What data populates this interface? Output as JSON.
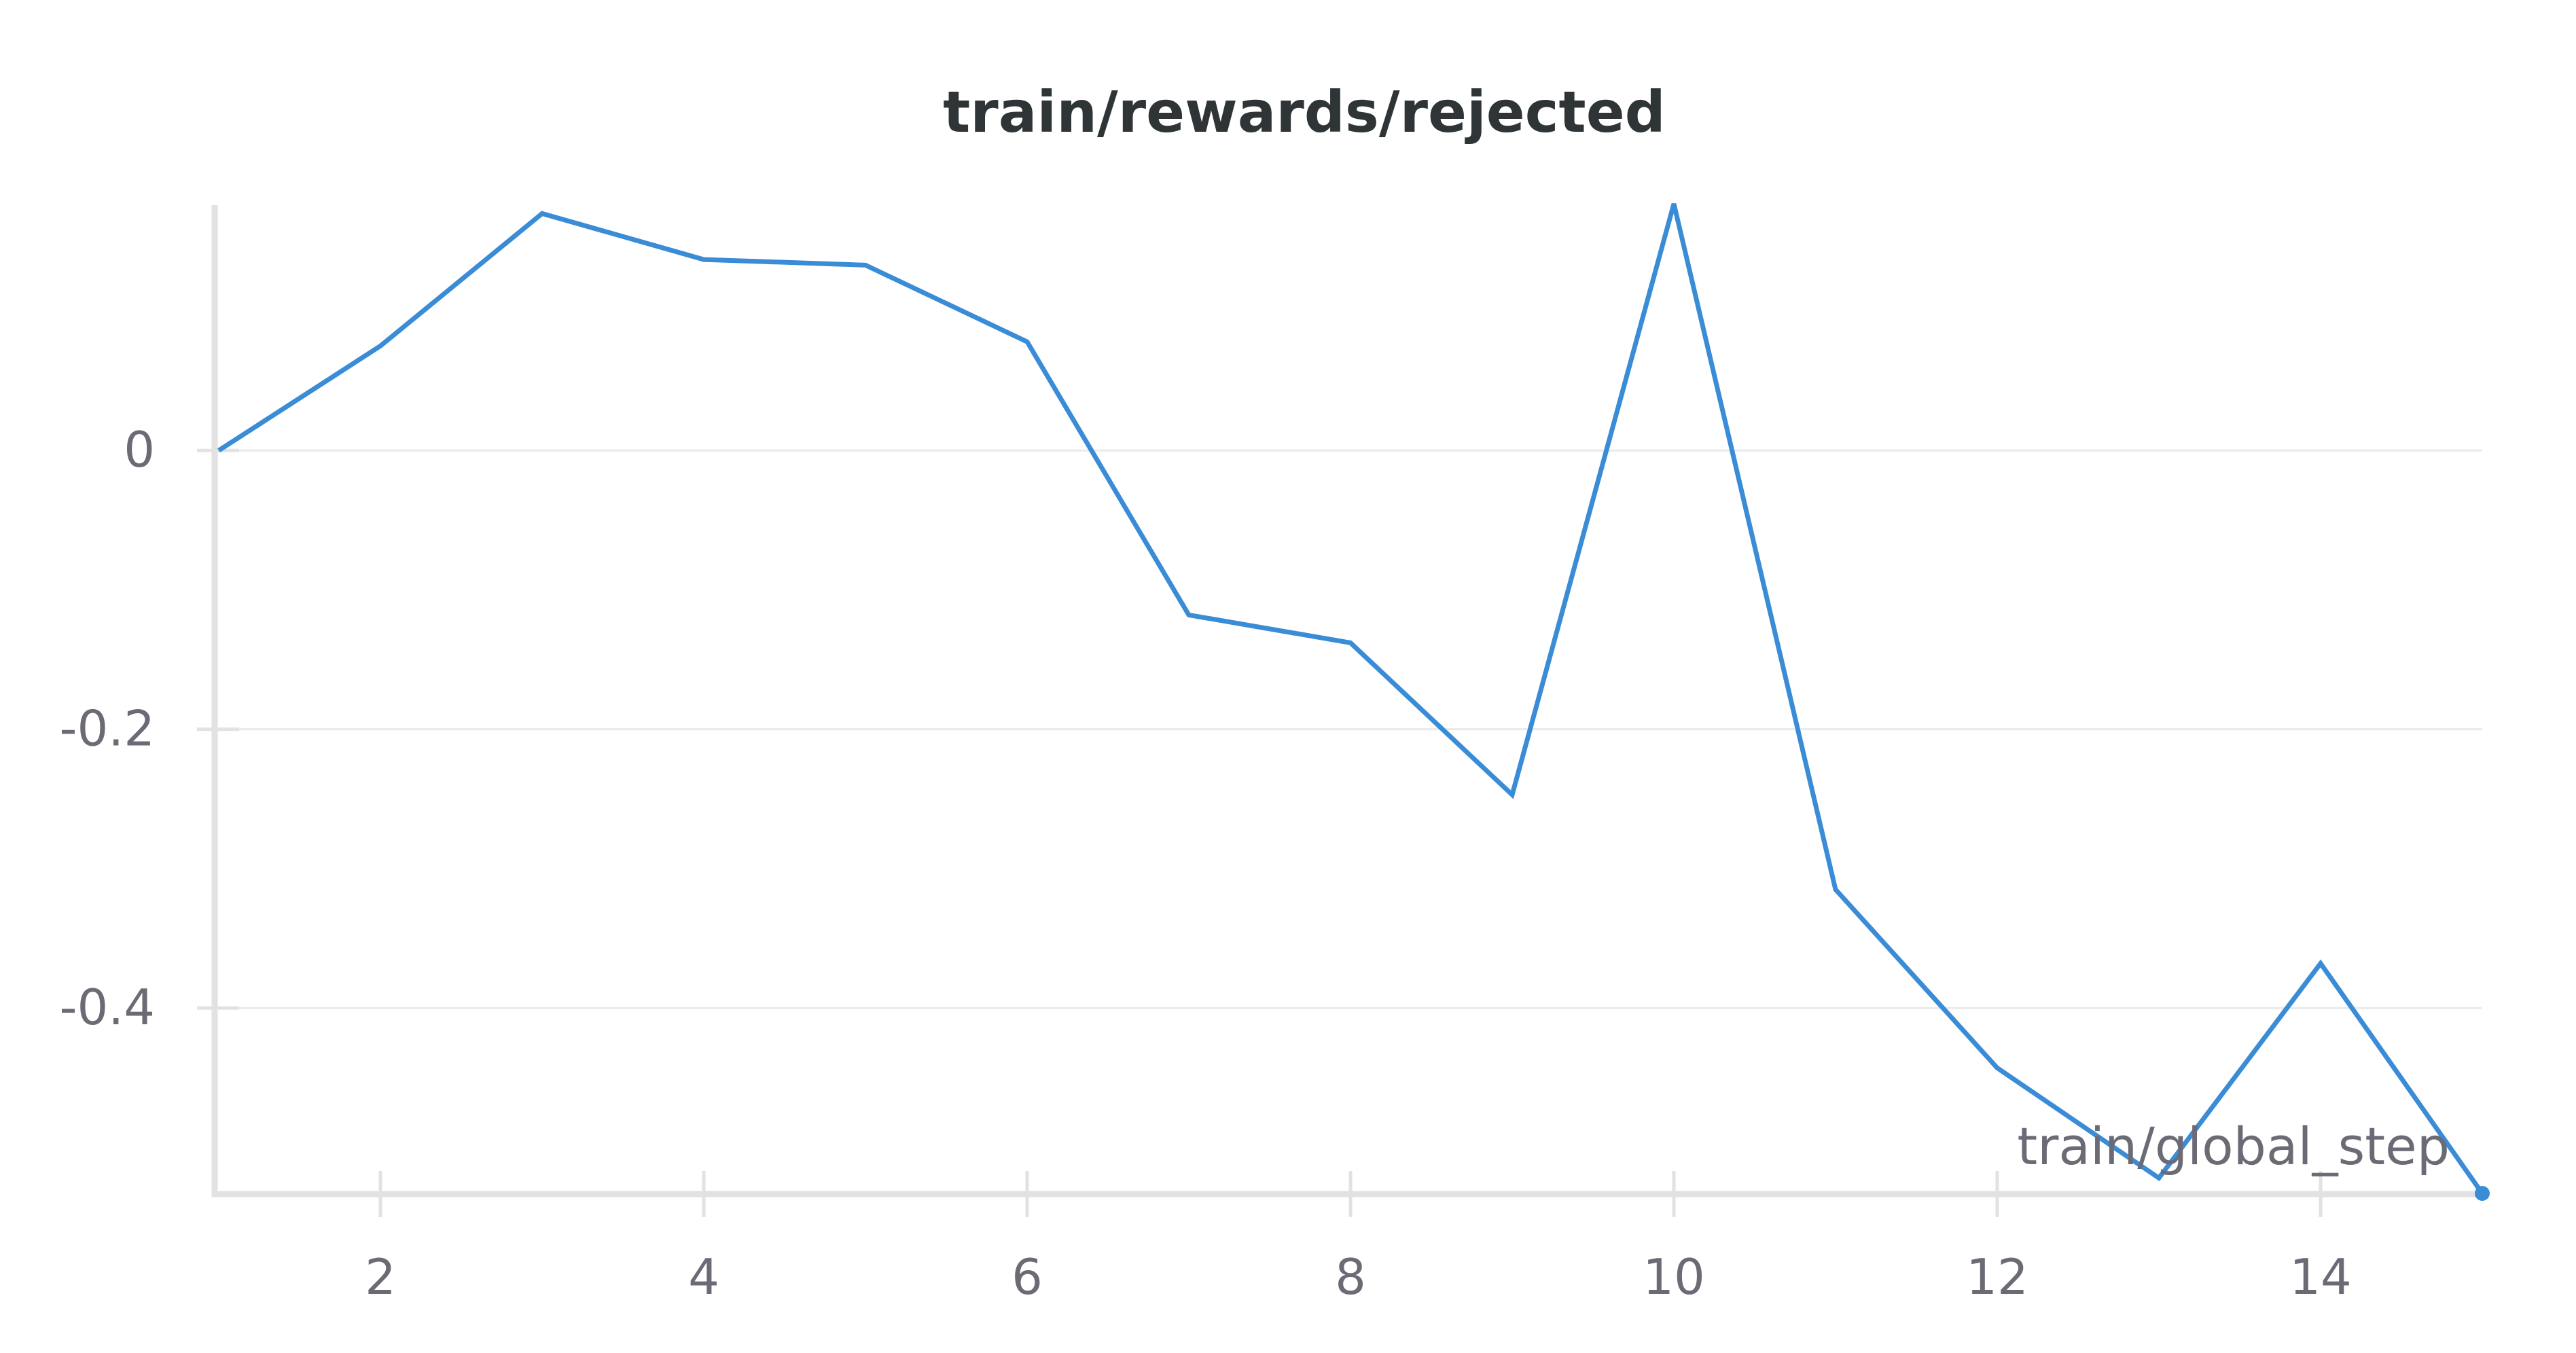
{
  "chart_data": {
    "type": "line",
    "title": "train/rewards/rejected",
    "xlabel": "train/global_step",
    "ylabel": "",
    "x": [
      1,
      2,
      3,
      4,
      5,
      6,
      7,
      8,
      9,
      10,
      11,
      12,
      13,
      14,
      15
    ],
    "series": [
      {
        "values": [
          0.0,
          0.075,
          0.17,
          0.137,
          0.133,
          0.078,
          -0.118,
          -0.138,
          -0.247,
          0.177,
          -0.315,
          -0.443,
          -0.522,
          -0.368,
          -0.533
        ],
        "color": "#3a8cd6"
      }
    ],
    "xlim": [
      1,
      15
    ],
    "ylim": [
      -0.533,
      0.177
    ],
    "xticks": [
      2,
      4,
      6,
      8,
      10,
      12,
      14
    ],
    "xtick_labels": [
      "2",
      "4",
      "6",
      "8",
      "10",
      "12",
      "14"
    ],
    "yticks": [
      0,
      -0.2,
      -0.4
    ],
    "ytick_labels": [
      "0",
      "-0.2",
      "-0.4"
    ],
    "grid": true,
    "end_marker": true,
    "colors": {
      "line": "#3a8cd6",
      "axis": "#e2e2e2",
      "grid": "#eaeaea",
      "tick_text": "#6b6b76",
      "title_text": "#2f3437"
    }
  }
}
